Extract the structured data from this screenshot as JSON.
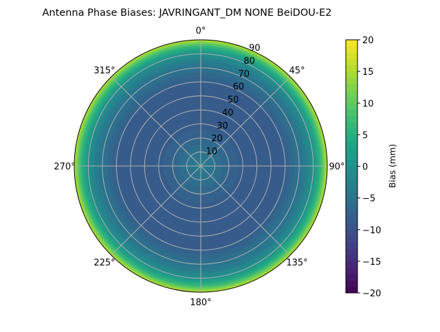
{
  "chart_data": {
    "type": "heatmap",
    "subtype": "polar",
    "title": "Antenna Phase Biases: JAVRINGANT_DM   NONE BeiDOU-E2",
    "radial_axis": {
      "label": "",
      "ticks": [
        10,
        20,
        30,
        40,
        50,
        60,
        70,
        80,
        90
      ],
      "range": [
        0,
        90
      ]
    },
    "angular_axis": {
      "ticks": [
        "0°",
        "45°",
        "90°",
        "135°",
        "180°",
        "225°",
        "270°",
        "315°"
      ],
      "direction": "clockwise",
      "zero": "top"
    },
    "grid": true,
    "colorbar": {
      "label": "Bias (mm)",
      "range": [
        -20,
        20
      ],
      "ticks": [
        "20",
        "15",
        "10",
        "5",
        "0",
        "−5",
        "−10",
        "−15",
        "−20"
      ],
      "colormap": "viridis",
      "levels": 40
    },
    "radial_profile": {
      "zenith_deg": [
        0,
        10,
        20,
        30,
        40,
        50,
        60,
        70,
        75,
        80,
        85,
        90
      ],
      "bias_mm": [
        -3,
        -5,
        -7,
        -8.5,
        -9,
        -9,
        -8,
        -5,
        -3,
        0,
        6,
        16
      ]
    }
  }
}
